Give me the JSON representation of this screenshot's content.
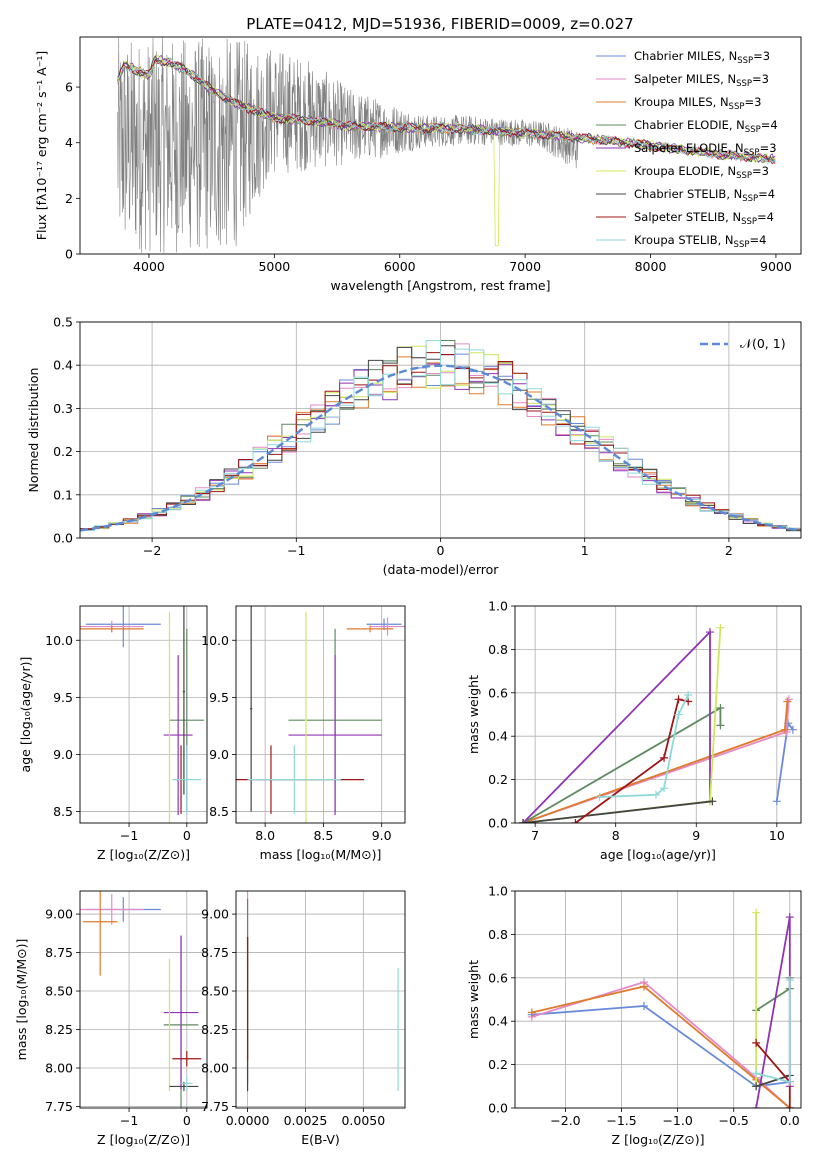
{
  "title": "PLATE=0412, MJD=51936, FIBERID=0009, z=0.027",
  "colors": {
    "chabrier_miles": "#6a8ad8",
    "salpeter_miles": "#e58ac8",
    "kroupa_miles": "#e07b2c",
    "chabrier_elodie": "#5f8a5f",
    "salpeter_elodie": "#9033b5",
    "kroupa_elodie": "#cde85a",
    "chabrier_stelib": "#444444",
    "salpeter_stelib": "#a01515",
    "kroupa_stelib": "#8fd8d8",
    "data": "#808080",
    "normal_curve": "#5b8bd8"
  },
  "legend_models": [
    {
      "label": "Chabrier MILES, N",
      "sub": "SSP",
      "tail": "=3",
      "color": "#6a8ad8"
    },
    {
      "label": "Salpeter MILES, N",
      "sub": "SSP",
      "tail": "=3",
      "color": "#e58ac8"
    },
    {
      "label": "Kroupa MILES, N",
      "sub": "SSP",
      "tail": "=3",
      "color": "#e07b2c"
    },
    {
      "label": "Chabrier ELODIE, N",
      "sub": "SSP",
      "tail": "=4",
      "color": "#5f8a5f"
    },
    {
      "label": "Salpeter ELODIE, N",
      "sub": "SSP",
      "tail": "=3",
      "color": "#9033b5"
    },
    {
      "label": "Kroupa ELODIE, N",
      "sub": "SSP",
      "tail": "=3",
      "color": "#cde85a"
    },
    {
      "label": "Chabrier STELIB, N",
      "sub": "SSP",
      "tail": "=4",
      "color": "#444444"
    },
    {
      "label": "Salpeter STELIB, N",
      "sub": "SSP",
      "tail": "=4",
      "color": "#a01515"
    },
    {
      "label": "Kroupa STELIB, N",
      "sub": "SSP",
      "tail": "=4",
      "color": "#8fd8d8"
    }
  ],
  "chart_data": [
    {
      "id": "spectrum",
      "type": "line",
      "xlabel": "wavelength [Angstrom, rest frame]",
      "ylabel": "Flux [fλ10⁻¹⁷ erg cm⁻² s⁻¹ A⁻¹]",
      "xlim": [
        3450,
        9200
      ],
      "ylim": [
        0,
        7.8
      ],
      "xticks": [
        4000,
        5000,
        6000,
        7000,
        8000,
        9000
      ],
      "yticks": [
        0,
        2,
        4,
        6
      ],
      "model_continuum": {
        "x": [
          3750,
          3800,
          3900,
          4000,
          4050,
          4150,
          4300,
          4500,
          4700,
          5000,
          5300,
          5600,
          6000,
          6500,
          7000,
          7500,
          8000,
          8500,
          9000
        ],
        "y": [
          6.2,
          6.8,
          6.6,
          6.4,
          7.0,
          6.9,
          6.6,
          5.9,
          5.4,
          4.9,
          4.8,
          4.6,
          4.55,
          4.5,
          4.35,
          4.15,
          3.9,
          3.6,
          3.4
        ]
      },
      "data_noise_band": {
        "x_range": [
          3750,
          7420
        ],
        "hi": [
          7.8,
          7.8,
          7.8,
          7.8,
          7.5,
          7.0,
          6.0,
          5.5,
          5.0,
          5.0,
          4.9,
          4.8,
          4.5
        ],
        "lo": [
          0.0,
          0.0,
          0.0,
          0.0,
          2.8,
          3.0,
          3.2,
          3.5,
          3.8,
          3.9,
          3.9,
          3.8,
          3.0
        ]
      }
    },
    {
      "id": "residual_hist",
      "type": "area",
      "xlabel": "(data-model)/error",
      "ylabel": "Normed distribution",
      "xlim": [
        -2.5,
        2.5
      ],
      "ylim": [
        0,
        0.5
      ],
      "xticks": [
        -2,
        -1,
        0,
        1,
        2
      ],
      "xtick_labels": [
        "−2",
        "−1",
        "0",
        "1",
        "2"
      ],
      "yticks": [
        0.0,
        0.1,
        0.2,
        0.3,
        0.4,
        0.5
      ],
      "ytick_labels": [
        "0.0",
        "0.1",
        "0.2",
        "0.3",
        "0.4",
        "0.5"
      ],
      "legend": "𝒩(0, 1)",
      "bin_width": 0.1
    },
    {
      "id": "age_vs_Z",
      "type": "scatter",
      "xlabel": "Z [log₁₀(Z/Z⊙)]",
      "ylabel": "age  [log₁₀(age/yr)]",
      "xlim": [
        -1.85,
        0.35
      ],
      "ylim": [
        8.4,
        10.3
      ],
      "xticks": [
        -1,
        0
      ],
      "xtick_labels": [
        "−1",
        "0"
      ],
      "yticks": [
        8.5,
        9.0,
        9.5,
        10.0
      ],
      "ytick_labels": [
        "8.5",
        "9.0",
        "9.5",
        "10.0"
      ],
      "points": [
        {
          "x": -1.1,
          "y": 10.14,
          "xerr": 0.65,
          "yerr": 0.2,
          "color": "#6a8ad8"
        },
        {
          "x": -1.3,
          "y": 10.12,
          "xerr": 0.55,
          "yerr": 0.05,
          "color": "#e58ac8"
        },
        {
          "x": -1.3,
          "y": 10.1,
          "xerr": 0.55,
          "yerr": 0.03,
          "color": "#e07b2c"
        },
        {
          "x": 0.0,
          "y": 9.3,
          "xerr": 0.3,
          "yerr": 0.8,
          "color": "#5f8a5f"
        },
        {
          "x": -0.15,
          "y": 9.17,
          "xerr": 0.25,
          "yerr": 0.7,
          "color": "#9033b5"
        },
        {
          "x": -0.3,
          "y": 9.3,
          "xerr": 0.01,
          "yerr": 0.95,
          "color": "#cde85a"
        },
        {
          "x": -0.05,
          "y": 9.55,
          "xerr": 0.02,
          "yerr": 0.9,
          "color": "#444444"
        },
        {
          "x": -0.1,
          "y": 8.78,
          "xerr": 0.1,
          "yerr": 0.3,
          "color": "#a01515"
        },
        {
          "x": 0.0,
          "y": 8.78,
          "xerr": 0.25,
          "yerr": 0.3,
          "color": "#8fd8d8"
        }
      ]
    },
    {
      "id": "age_vs_mass",
      "type": "scatter",
      "xlabel": "mass [log₁₀(M/M⊙)]",
      "xlim": [
        7.75,
        9.2
      ],
      "ylim": [
        8.4,
        10.3
      ],
      "xticks": [
        8.0,
        8.5,
        9.0
      ],
      "xtick_labels": [
        "8.0",
        "8.5",
        "9.0"
      ],
      "yticks": [
        8.5,
        9.0,
        9.5,
        10.0
      ],
      "ytick_labels": [
        "8.5",
        "9.0",
        "9.5",
        "10.0"
      ],
      "points": [
        {
          "x": 9.02,
          "y": 10.14,
          "xerr": 0.15,
          "yerr": 0.05,
          "color": "#6a8ad8"
        },
        {
          "x": 9.05,
          "y": 10.12,
          "xerr": 0.15,
          "yerr": 0.08,
          "color": "#e58ac8"
        },
        {
          "x": 8.9,
          "y": 10.1,
          "xerr": 0.2,
          "yerr": 0.03,
          "color": "#e07b2c"
        },
        {
          "x": 8.6,
          "y": 9.3,
          "xerr": 0.4,
          "yerr": 0.8,
          "color": "#5f8a5f"
        },
        {
          "x": 8.6,
          "y": 9.17,
          "xerr": 0.4,
          "yerr": 0.7,
          "color": "#9033b5"
        },
        {
          "x": 8.35,
          "y": 9.3,
          "xerr": 0.01,
          "yerr": 0.95,
          "color": "#cde85a"
        },
        {
          "x": 7.88,
          "y": 9.4,
          "xerr": 0.01,
          "yerr": 0.9,
          "color": "#444444"
        },
        {
          "x": 8.05,
          "y": 8.78,
          "xerr": 0.8,
          "yerr": 0.3,
          "color": "#a01515"
        },
        {
          "x": 8.25,
          "y": 8.78,
          "xerr": 0.4,
          "yerr": 0.3,
          "color": "#8fd8d8"
        }
      ]
    },
    {
      "id": "weight_vs_age",
      "type": "line",
      "xlabel": "age  [log₁₀(age/yr)]",
      "ylabel": "mass weight",
      "xlim": [
        6.75,
        10.3
      ],
      "ylim": [
        0,
        1.0
      ],
      "xticks": [
        7,
        8,
        9,
        10
      ],
      "xtick_labels": [
        "7",
        "8",
        "9",
        "10"
      ],
      "yticks": [
        0.0,
        0.2,
        0.4,
        0.6,
        0.8,
        1.0
      ],
      "ytick_labels": [
        "0.0",
        "0.2",
        "0.4",
        "0.6",
        "0.8",
        "1.0"
      ],
      "series": [
        {
          "color": "#6a8ad8",
          "x": [
            10.0,
            10.14,
            10.2
          ],
          "y": [
            0.1,
            0.46,
            0.43
          ]
        },
        {
          "color": "#e58ac8",
          "x": [
            6.85,
            10.12,
            10.15
          ],
          "y": [
            0.0,
            0.42,
            0.57
          ]
        },
        {
          "color": "#e07b2c",
          "x": [
            6.85,
            10.1,
            10.13
          ],
          "y": [
            0.0,
            0.43,
            0.56
          ]
        },
        {
          "color": "#5f8a5f",
          "x": [
            6.85,
            9.3,
            9.3
          ],
          "y": [
            0.0,
            0.53,
            0.45
          ]
        },
        {
          "color": "#9033b5",
          "x": [
            6.85,
            9.17,
            9.17
          ],
          "y": [
            0.0,
            0.88,
            0.1
          ]
        },
        {
          "color": "#cde85a",
          "x": [
            6.85,
            9.17,
            9.3
          ],
          "y": [
            0.0,
            0.1,
            0.9
          ]
        },
        {
          "color": "#444444",
          "x": [
            6.85,
            9.2
          ],
          "y": [
            0.0,
            0.1
          ]
        },
        {
          "color": "#a01515",
          "x": [
            7.5,
            8.6,
            8.78,
            8.9
          ],
          "y": [
            0.0,
            0.3,
            0.57,
            0.56
          ]
        },
        {
          "color": "#8fd8d8",
          "x": [
            7.8,
            8.5,
            8.6,
            8.78,
            8.9
          ],
          "y": [
            0.12,
            0.13,
            0.16,
            0.5,
            0.59
          ]
        }
      ]
    },
    {
      "id": "mass_vs_Z",
      "type": "scatter",
      "xlabel": "Z [log₁₀(Z/Z⊙)]",
      "ylabel": "mass [log₁₀(M/M⊙)]",
      "xlim": [
        -1.85,
        0.35
      ],
      "ylim": [
        7.74,
        9.15
      ],
      "xticks": [
        -1,
        0
      ],
      "xtick_labels": [
        "−1",
        "0"
      ],
      "yticks": [
        7.75,
        8.0,
        8.25,
        8.5,
        8.75,
        9.0
      ],
      "ytick_labels": [
        "7.75",
        "8.00",
        "8.25",
        "8.50",
        "8.75",
        "9.00"
      ],
      "points": [
        {
          "x": -1.1,
          "y": 9.03,
          "xerr": 0.65,
          "yerr": 0.08,
          "color": "#6a8ad8"
        },
        {
          "x": -1.3,
          "y": 9.03,
          "xerr": 0.55,
          "yerr": 0.1,
          "color": "#e58ac8"
        },
        {
          "x": -1.5,
          "y": 8.95,
          "xerr": 0.3,
          "yerr": 0.35,
          "color": "#e07b2c"
        },
        {
          "x": -0.1,
          "y": 8.28,
          "xerr": 0.3,
          "yerr": 0.58,
          "color": "#5f8a5f"
        },
        {
          "x": -0.1,
          "y": 8.36,
          "xerr": 0.3,
          "yerr": 0.5,
          "color": "#9033b5"
        },
        {
          "x": -0.3,
          "y": 8.28,
          "xerr": 0.01,
          "yerr": 0.43,
          "color": "#cde85a"
        },
        {
          "x": -0.05,
          "y": 7.88,
          "xerr": 0.25,
          "yerr": 0.03,
          "color": "#444444"
        },
        {
          "x": 0.0,
          "y": 8.06,
          "xerr": 0.25,
          "yerr": 0.05,
          "color": "#a01515"
        },
        {
          "x": 0.0,
          "y": 7.9,
          "xerr": 0.1,
          "yerr": 0.05,
          "color": "#8fd8d8"
        }
      ]
    },
    {
      "id": "mass_vs_EBV",
      "type": "scatter",
      "xlabel": "E(B-V)",
      "xlim": [
        -0.0005,
        0.0068
      ],
      "ylim": [
        7.74,
        9.15
      ],
      "xticks": [
        0.0,
        0.0025,
        0.005
      ],
      "xtick_labels": [
        "0.0000",
        "0.0025",
        "0.0050"
      ],
      "yticks": [
        7.75,
        8.0,
        8.25,
        8.5,
        8.75,
        9.0
      ],
      "ytick_labels": [
        "7.75",
        "8.00",
        "8.25",
        "8.50",
        "8.75",
        "9.00"
      ],
      "points": [
        {
          "x": 0.0,
          "y": 8.9,
          "xerr": 0.0,
          "yerr": 0.25,
          "color": "#e58ac8"
        },
        {
          "x": 0.0,
          "y": 8.5,
          "xerr": 0.0,
          "yerr": 0.6,
          "color": "#5f8a5f"
        },
        {
          "x": 0.0,
          "y": 8.35,
          "xerr": 0.0,
          "yerr": 0.5,
          "color": "#444444"
        },
        {
          "x": 0.0,
          "y": 8.45,
          "xerr": 0.0,
          "yerr": 0.4,
          "color": "#a01515"
        },
        {
          "x": 0.0065,
          "y": 8.25,
          "xerr": 0.0,
          "yerr": 0.4,
          "color": "#8fd8d8"
        }
      ]
    },
    {
      "id": "weight_vs_Z",
      "type": "line",
      "xlabel": "Z [log₁₀(Z/Z⊙)]",
      "ylabel": "mass weight",
      "xlim": [
        -2.45,
        0.1
      ],
      "ylim": [
        0,
        1.0
      ],
      "xticks": [
        -2.0,
        -1.5,
        -1.0,
        -0.5,
        0.0
      ],
      "xtick_labels": [
        "−2.0",
        "−1.5",
        "−1.0",
        "−0.5",
        "0.0"
      ],
      "yticks": [
        0.0,
        0.2,
        0.4,
        0.6,
        0.8,
        1.0
      ],
      "ytick_labels": [
        "0.0",
        "0.2",
        "0.4",
        "0.6",
        "0.8",
        "1.0"
      ],
      "series": [
        {
          "color": "#6a8ad8",
          "x": [
            -2.3,
            -1.3,
            -0.3,
            0.0
          ],
          "y": [
            0.43,
            0.47,
            0.1,
            0.12
          ]
        },
        {
          "color": "#e58ac8",
          "x": [
            -2.3,
            -1.3,
            -0.3,
            0.0
          ],
          "y": [
            0.42,
            0.58,
            0.14,
            0.0
          ]
        },
        {
          "color": "#e07b2c",
          "x": [
            -2.3,
            -1.3,
            -0.3,
            0.0
          ],
          "y": [
            0.44,
            0.56,
            0.13,
            0.0
          ]
        },
        {
          "color": "#5f8a5f",
          "x": [
            -0.3,
            0.0,
            0.0
          ],
          "y": [
            0.45,
            0.55,
            0.6
          ]
        },
        {
          "color": "#9033b5",
          "x": [
            -0.3,
            0.0,
            0.0
          ],
          "y": [
            0.0,
            0.88,
            0.1
          ]
        },
        {
          "color": "#cde85a",
          "x": [
            -0.3,
            -0.3
          ],
          "y": [
            0.1,
            0.9
          ]
        },
        {
          "color": "#444444",
          "x": [
            -0.3,
            0.0
          ],
          "y": [
            0.1,
            0.15
          ]
        },
        {
          "color": "#a01515",
          "x": [
            -0.3,
            0.0,
            0.0
          ],
          "y": [
            0.3,
            0.12,
            0.0
          ]
        },
        {
          "color": "#8fd8d8",
          "x": [
            -0.3,
            0.0,
            0.0
          ],
          "y": [
            0.16,
            0.12,
            0.59
          ]
        }
      ]
    }
  ]
}
